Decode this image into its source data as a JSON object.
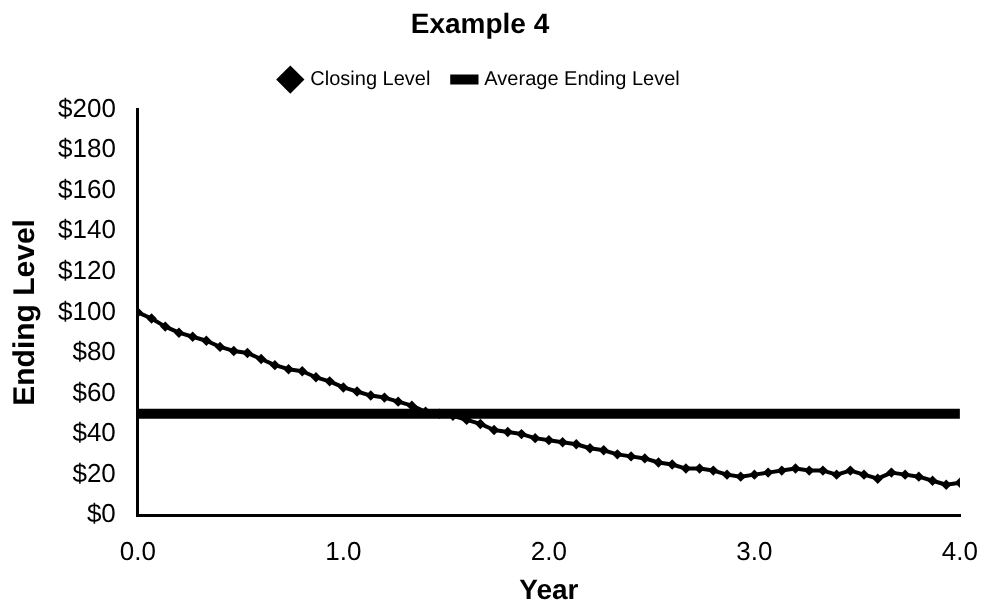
{
  "chart_data": {
    "type": "line",
    "title": "Example 4",
    "xlabel": "Year",
    "ylabel": "Ending Level",
    "xlim": [
      0,
      4
    ],
    "xticks": [
      {
        "value": 0,
        "label": "0.0"
      },
      {
        "value": 1,
        "label": "1.0"
      },
      {
        "value": 2,
        "label": "2.0"
      },
      {
        "value": 3,
        "label": "3.0"
      },
      {
        "value": 4,
        "label": "4.0"
      }
    ],
    "ylim": [
      0,
      200
    ],
    "yticks": [
      {
        "value": 0,
        "label": "$0"
      },
      {
        "value": 20,
        "label": "$20"
      },
      {
        "value": 40,
        "label": "$40"
      },
      {
        "value": 60,
        "label": "$60"
      },
      {
        "value": 80,
        "label": "$80"
      },
      {
        "value": 100,
        "label": "$100"
      },
      {
        "value": 120,
        "label": "$120"
      },
      {
        "value": 140,
        "label": "$140"
      },
      {
        "value": 160,
        "label": "$160"
      },
      {
        "value": 180,
        "label": "$180"
      },
      {
        "value": 200,
        "label": "$200"
      }
    ],
    "grid": false,
    "legend": "top",
    "series": [
      {
        "name": "Closing Level",
        "color": "#000000",
        "marker": "diamond",
        "x": [
          0,
          0.0667,
          0.1333,
          0.2,
          0.2667,
          0.3333,
          0.4,
          0.4667,
          0.5333,
          0.6,
          0.6667,
          0.7333,
          0.8,
          0.8667,
          0.9333,
          1,
          1.0667,
          1.1333,
          1.2,
          1.2667,
          1.3333,
          1.4,
          1.4667,
          1.5333,
          1.6,
          1.6667,
          1.7333,
          1.8,
          1.8667,
          1.9333,
          2,
          2.0667,
          2.1333,
          2.2,
          2.2667,
          2.3333,
          2.4,
          2.4667,
          2.5333,
          2.6,
          2.6667,
          2.7333,
          2.8,
          2.8667,
          2.9333,
          3,
          3.0667,
          3.1333,
          3.2,
          3.2667,
          3.3333,
          3.4,
          3.4667,
          3.5333,
          3.6,
          3.6667,
          3.7333,
          3.8,
          3.8667,
          3.9333,
          4
        ],
        "values": [
          100,
          97,
          93,
          90,
          88,
          86,
          83,
          81,
          80,
          77,
          74,
          72,
          71,
          68,
          66,
          63,
          61,
          59,
          58,
          56,
          54,
          51,
          50,
          49,
          47,
          45,
          42,
          41,
          40,
          38,
          37,
          36,
          35,
          33,
          32,
          30,
          29,
          28,
          26,
          25,
          23,
          23,
          22,
          20,
          19,
          20,
          21,
          22,
          23,
          22,
          22,
          20,
          22,
          20,
          18,
          21,
          20,
          19,
          17,
          15,
          16
        ]
      },
      {
        "name": "Average Ending Level",
        "color": "#000000",
        "marker": "none",
        "x": [
          0,
          4
        ],
        "values": [
          50,
          50
        ]
      }
    ]
  }
}
